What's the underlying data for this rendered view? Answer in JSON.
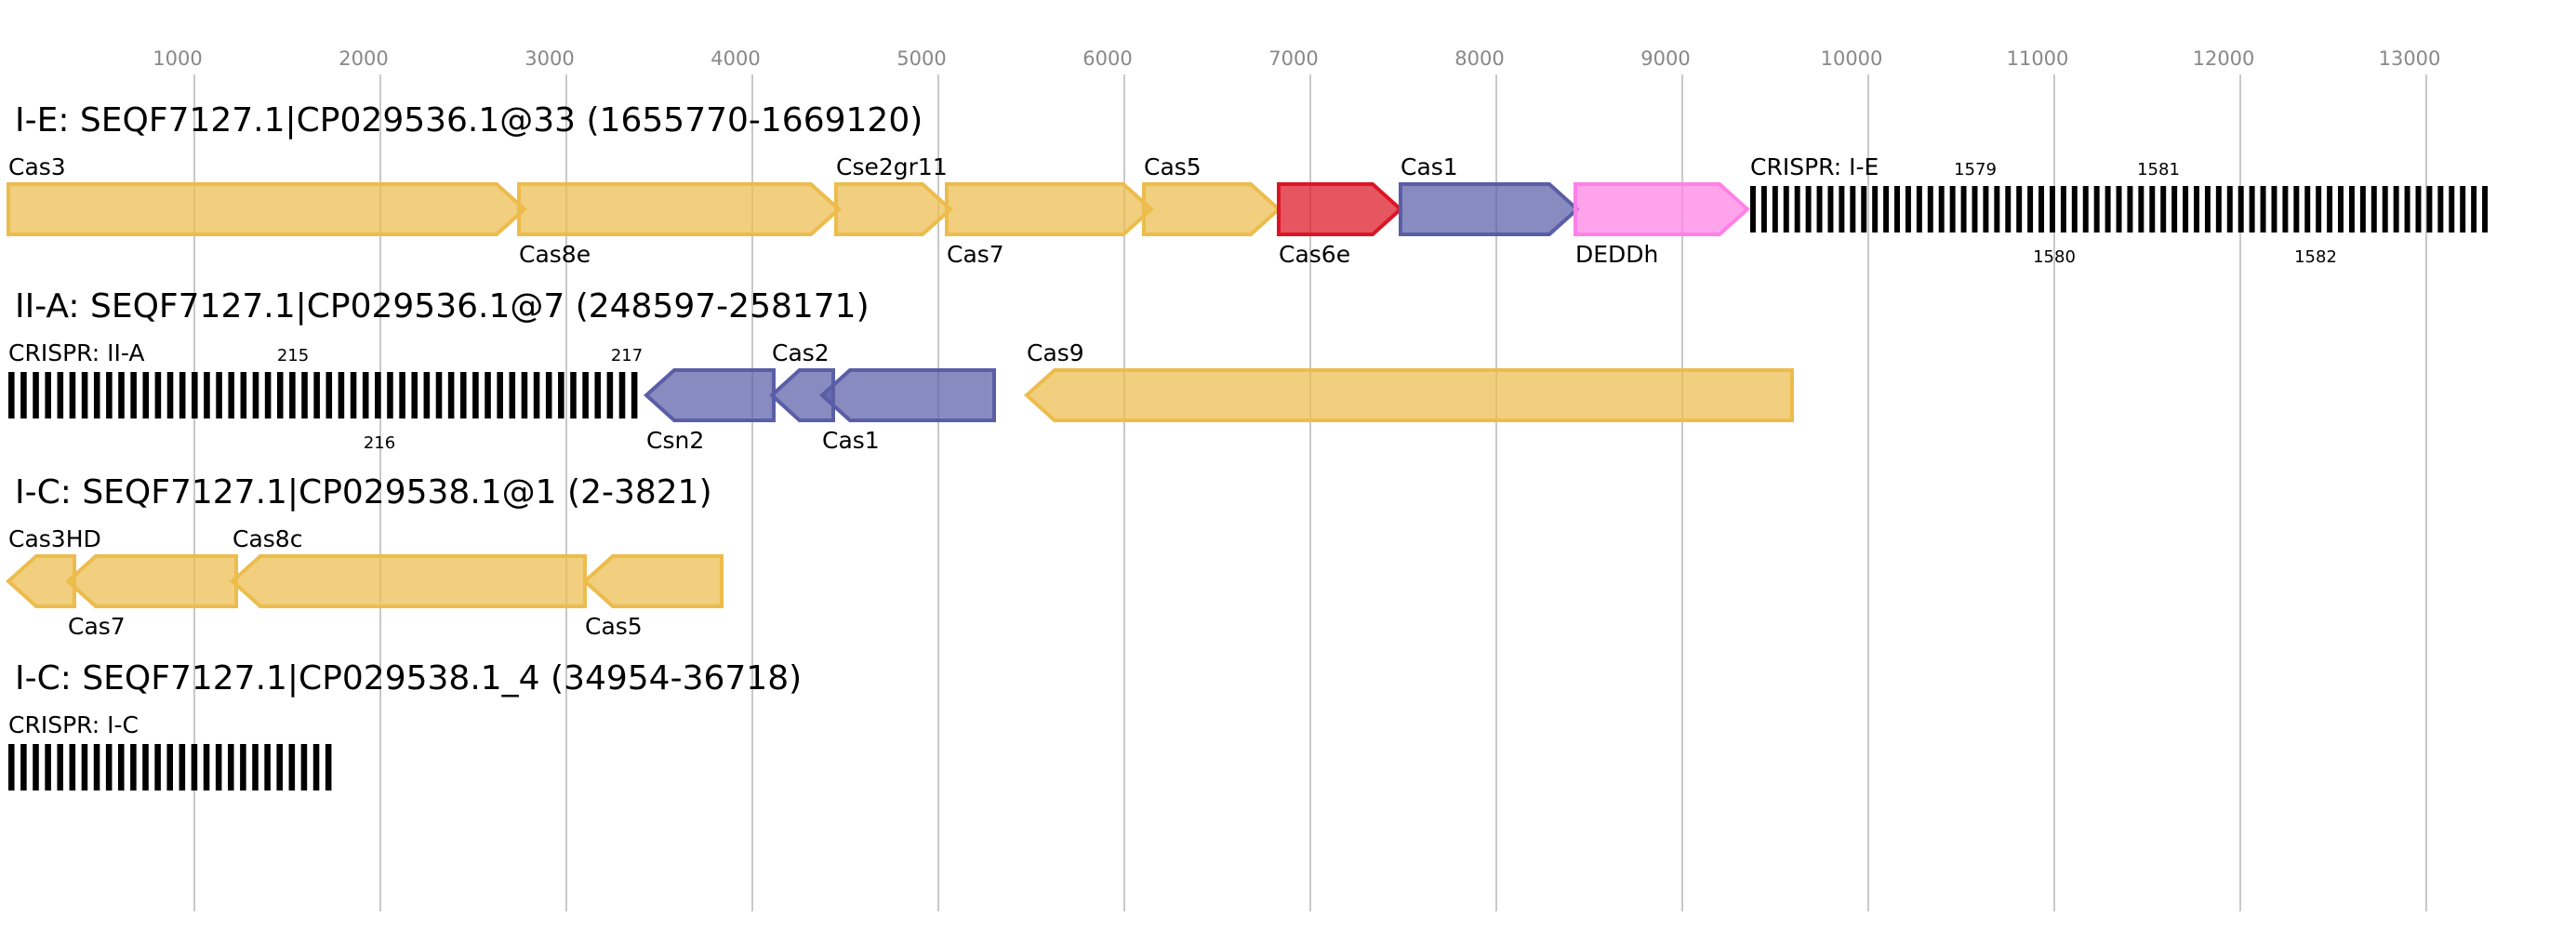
{
  "colors": {
    "yellow": {
      "fill": "#ecbc4c",
      "stroke": "#ecbc4c"
    },
    "red": {
      "fill": "#dc1524",
      "stroke": "#dc1524"
    },
    "blue": {
      "fill": "#5a5ea6",
      "stroke": "#5a5ea6"
    },
    "pink": {
      "fill": "#ff80e6",
      "stroke": "#ff80e6"
    },
    "grid": "#c8c8c8",
    "crispr": "#000000"
  },
  "axis": {
    "ticks": [
      "1000",
      "2000",
      "3000",
      "4000",
      "5000",
      "6000",
      "7000",
      "8000",
      "9000",
      "10000",
      "11000",
      "12000",
      "13000"
    ],
    "tick_values": [
      1000,
      2000,
      3000,
      4000,
      5000,
      6000,
      7000,
      8000,
      9000,
      10000,
      11000,
      12000,
      13000
    ]
  },
  "tracks": [
    {
      "title": "I-E: SEQF7127.1|CP029536.1@33 (1655770-1669120)",
      "features": [
        {
          "type": "gene",
          "name": "Cas3",
          "start": 0,
          "end": 2775,
          "strand": "+",
          "color": "yellow",
          "label_side": "above"
        },
        {
          "type": "gene",
          "name": "Cas8e",
          "start": 2745,
          "end": 4465,
          "strand": "+",
          "color": "yellow",
          "label_side": "below"
        },
        {
          "type": "gene",
          "name": "Cse2gr11",
          "start": 4450,
          "end": 5065,
          "strand": "+",
          "color": "yellow",
          "label_side": "above"
        },
        {
          "type": "gene",
          "name": "Cas7",
          "start": 5045,
          "end": 6145,
          "strand": "+",
          "color": "yellow",
          "label_side": "below"
        },
        {
          "type": "gene",
          "name": "Cas5",
          "start": 6105,
          "end": 6830,
          "strand": "+",
          "color": "yellow",
          "label_side": "above"
        },
        {
          "type": "gene",
          "name": "Cas6e",
          "start": 6830,
          "end": 7485,
          "strand": "+",
          "color": "red",
          "label_side": "below"
        },
        {
          "type": "gene",
          "name": "Cas1",
          "start": 7485,
          "end": 8435,
          "strand": "+",
          "color": "blue",
          "label_side": "above"
        },
        {
          "type": "gene",
          "name": "DEDDh",
          "start": 8425,
          "end": 9350,
          "strand": "+",
          "color": "pink",
          "label_side": "below"
        },
        {
          "type": "crispr",
          "name": "CRISPR: I-E",
          "start": 9365,
          "end": 13360,
          "repeats": 67,
          "spacer_labels": [
            {
              "text": "1579",
              "pos": 10575,
              "side": "above"
            },
            {
              "text": "1580",
              "pos": 11000,
              "side": "below"
            },
            {
              "text": "1581",
              "pos": 11560,
              "side": "above"
            },
            {
              "text": "1582",
              "pos": 12405,
              "side": "below"
            }
          ]
        }
      ]
    },
    {
      "title": "II-A: SEQF7127.1|CP029536.1@7 (248597-258171)",
      "features": [
        {
          "type": "crispr",
          "name": "CRISPR: II-A",
          "start": 0,
          "end": 3415,
          "repeats": 52,
          "spacer_labels": [
            {
              "text": "215",
              "pos": 1530,
              "side": "above"
            },
            {
              "text": "216",
              "pos": 1995,
              "side": "below"
            },
            {
              "text": "217",
              "pos": 3325,
              "side": "above"
            }
          ]
        },
        {
          "type": "gene",
          "name": "Csn2",
          "start": 3430,
          "end": 4115,
          "strand": "-",
          "color": "blue",
          "label_side": "below"
        },
        {
          "type": "gene",
          "name": "Cas2",
          "start": 4105,
          "end": 4435,
          "strand": "-",
          "color": "blue",
          "label_side": "above"
        },
        {
          "type": "gene",
          "name": "Cas1",
          "start": 4375,
          "end": 5300,
          "strand": "-",
          "color": "blue",
          "label_side": "below"
        },
        {
          "type": "gene",
          "name": "Cas9",
          "start": 5475,
          "end": 9590,
          "strand": "-",
          "color": "yellow",
          "label_side": "above"
        }
      ]
    },
    {
      "title": "I-C: SEQF7127.1|CP029538.1@1 (2-3821)",
      "features": [
        {
          "type": "gene",
          "name": "Cas3HD",
          "start": 0,
          "end": 355,
          "strand": "-",
          "color": "yellow",
          "label_side": "above"
        },
        {
          "type": "gene",
          "name": "Cas7",
          "start": 320,
          "end": 1225,
          "strand": "-",
          "color": "yellow",
          "label_side": "below"
        },
        {
          "type": "gene",
          "name": "Cas8c",
          "start": 1205,
          "end": 3100,
          "strand": "-",
          "color": "yellow",
          "label_side": "above"
        },
        {
          "type": "gene",
          "name": "Cas5",
          "start": 3100,
          "end": 3835,
          "strand": "-",
          "color": "yellow",
          "label_side": "below"
        }
      ]
    },
    {
      "title": "I-C: SEQF7127.1|CP029538.1_4 (34954-36718)",
      "features": [
        {
          "type": "crispr",
          "name": "CRISPR: I-C",
          "start": 0,
          "end": 1770,
          "repeats": 27,
          "spacer_labels": []
        }
      ]
    }
  ]
}
